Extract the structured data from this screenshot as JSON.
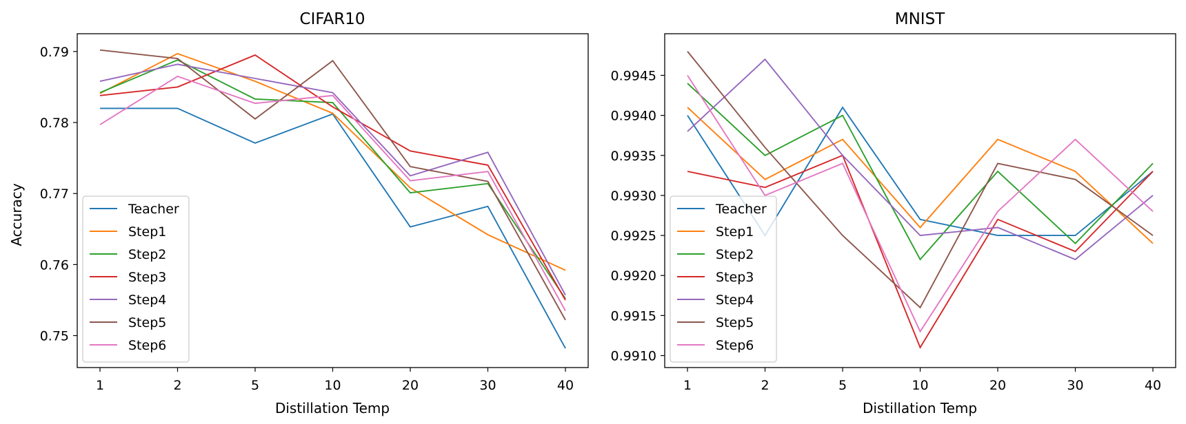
{
  "chart_data": [
    {
      "type": "line",
      "title": "CIFAR10",
      "xlabel": "Distillation Temp",
      "ylabel": "Accuracy",
      "categories": [
        "1",
        "2",
        "5",
        "10",
        "20",
        "30",
        "40"
      ],
      "yticks": [
        "0.75",
        "0.76",
        "0.77",
        "0.78",
        "0.79"
      ],
      "ylim": [
        0.7455,
        0.7925
      ],
      "legend_position": "lower-left",
      "series": [
        {
          "name": "Teacher",
          "color": "#1f77b4",
          "values": [
            0.782,
            0.782,
            0.7771,
            0.7812,
            0.7653,
            0.7682,
            0.7482
          ]
        },
        {
          "name": "Step1",
          "color": "#ff7f0e",
          "values": [
            0.7841,
            0.7897,
            0.7858,
            0.7813,
            0.7708,
            0.7642,
            0.7592
          ]
        },
        {
          "name": "Step2",
          "color": "#2ca02c",
          "values": [
            0.7842,
            0.7888,
            0.7833,
            0.7828,
            0.7701,
            0.7714,
            0.7552
          ]
        },
        {
          "name": "Step3",
          "color": "#d62728",
          "values": [
            0.7838,
            0.785,
            0.7895,
            0.7822,
            0.776,
            0.774,
            0.755
          ]
        },
        {
          "name": "Step4",
          "color": "#9467bd",
          "values": [
            0.7858,
            0.7882,
            0.7862,
            0.7842,
            0.7725,
            0.7758,
            0.7557
          ]
        },
        {
          "name": "Step5",
          "color": "#8c564b",
          "values": [
            0.7902,
            0.789,
            0.7805,
            0.7887,
            0.7738,
            0.7717,
            0.7522
          ]
        },
        {
          "name": "Step6",
          "color": "#e377c2",
          "values": [
            0.7797,
            0.7865,
            0.7827,
            0.7838,
            0.7718,
            0.7731,
            0.7535
          ]
        }
      ]
    },
    {
      "type": "line",
      "title": "MNIST",
      "xlabel": "Distillation Temp",
      "ylabel": "",
      "categories": [
        "1",
        "2",
        "5",
        "10",
        "20",
        "30",
        "40"
      ],
      "yticks": [
        "0.9910",
        "0.9915",
        "0.9920",
        "0.9925",
        "0.9930",
        "0.9935",
        "0.9940",
        "0.9945"
      ],
      "ylim": [
        0.99085,
        0.99502
      ],
      "legend_position": "lower-left",
      "series": [
        {
          "name": "Teacher",
          "color": "#1f77b4",
          "values": [
            0.994,
            0.9925,
            0.9941,
            0.9927,
            0.9925,
            0.9925,
            0.9933
          ]
        },
        {
          "name": "Step1",
          "color": "#ff7f0e",
          "values": [
            0.9941,
            0.9932,
            0.9937,
            0.9926,
            0.9937,
            0.9933,
            0.9924
          ]
        },
        {
          "name": "Step2",
          "color": "#2ca02c",
          "values": [
            0.9944,
            0.9935,
            0.994,
            0.9922,
            0.9933,
            0.9924,
            0.9934
          ]
        },
        {
          "name": "Step3",
          "color": "#d62728",
          "values": [
            0.9933,
            0.9931,
            0.9935,
            0.9911,
            0.9927,
            0.9923,
            0.9933
          ]
        },
        {
          "name": "Step4",
          "color": "#9467bd",
          "values": [
            0.9938,
            0.9947,
            0.9935,
            0.9925,
            0.9926,
            0.9922,
            0.993
          ]
        },
        {
          "name": "Step5",
          "color": "#8c564b",
          "values": [
            0.9948,
            0.9936,
            0.9925,
            0.9916,
            0.9934,
            0.9932,
            0.9925
          ]
        },
        {
          "name": "Step6",
          "color": "#e377c2",
          "values": [
            0.9945,
            0.993,
            0.9934,
            0.9913,
            0.9928,
            0.9937,
            0.9928
          ]
        }
      ]
    }
  ]
}
